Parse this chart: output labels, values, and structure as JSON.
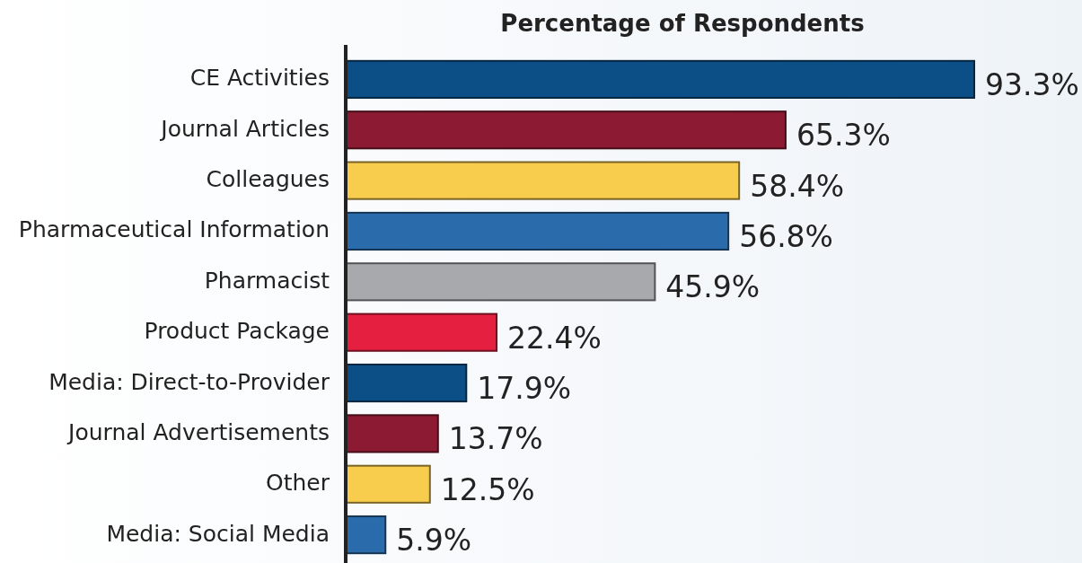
{
  "chart_data": {
    "type": "bar",
    "orientation": "horizontal",
    "title": "Percentage of Respondents",
    "categories": [
      "CE Activities",
      "Journal Articles",
      "Colleagues",
      "Pharmaceutical Information",
      "Pharmacist",
      "Product Package",
      "Media: Direct-to-Provider",
      "Journal Advertisements",
      "Other",
      "Media: Social Media"
    ],
    "values": [
      93.3,
      65.3,
      58.4,
      56.8,
      45.9,
      22.4,
      17.9,
      13.7,
      12.5,
      5.9
    ],
    "value_labels": [
      "93.3%",
      "65.3%",
      "58.4%",
      "56.8%",
      "45.9%",
      "22.4%",
      "17.9%",
      "13.7%",
      "12.5%",
      "5.9%"
    ],
    "colors": [
      "#0b4f86",
      "#8c1a32",
      "#f8cc4c",
      "#2a6cab",
      "#a8a9ac",
      "#e41f3f",
      "#0b4f86",
      "#8c1a32",
      "#f8cc4c",
      "#2a6cab"
    ],
    "tick_labels": "y"
  }
}
